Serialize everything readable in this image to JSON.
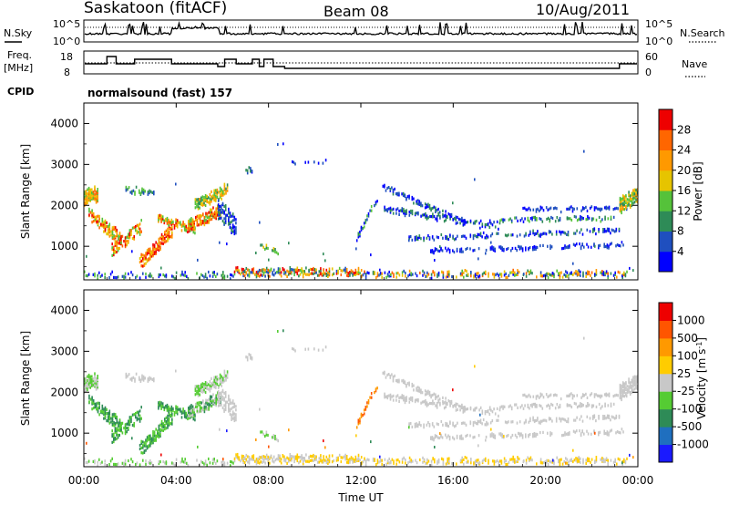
{
  "header": {
    "station": "Saskatoon (fitACF)",
    "beam": "Beam 08",
    "date": "10/Aug/2011"
  },
  "panels": {
    "nsky": {
      "label": "N.Sky",
      "ticks": [
        "10^5",
        "10^0"
      ],
      "right_label": "N.Search",
      "right_ticks": [
        "10^5",
        "10^0"
      ]
    },
    "freq": {
      "label_line1": "Freq.",
      "label_line2": "[MHz]",
      "ticks": [
        "18",
        "8"
      ],
      "right_label": "Nave",
      "right_ticks": [
        "60",
        "0"
      ]
    },
    "cpid": {
      "label": "CPID",
      "value": "normalsound (fast) 157"
    }
  },
  "colors": {
    "power_scale": [
      "#0000ff",
      "#1f4fbf",
      "#2e8b57",
      "#55c23a",
      "#e6c400",
      "#ff9900",
      "#ff6600",
      "#ee0000"
    ],
    "velocity_scale": [
      "#1a1aff",
      "#1f6fbf",
      "#2e8b57",
      "#55cc33",
      "#c8c8c8",
      "#ffcc00",
      "#ff9900",
      "#ff5500",
      "#ee0000"
    ]
  },
  "chart_data": [
    {
      "type": "heatmap",
      "title": "Power",
      "ylabel": "Slant Range [km]",
      "ylim": [
        180,
        4500
      ],
      "yticks": [
        "1000",
        "2000",
        "3000",
        "4000"
      ],
      "colorbar_label": "Power [dB]",
      "colorbar_ticks": [
        "4",
        "8",
        "12",
        "16",
        "20",
        "24",
        "28"
      ],
      "colorbar_range": [
        0,
        32
      ]
    },
    {
      "type": "heatmap",
      "title": "Velocity",
      "ylabel": "Slant Range [km]",
      "ylim": [
        180,
        4500
      ],
      "yticks": [
        "1000",
        "2000",
        "3000",
        "4000"
      ],
      "colorbar_label": "Velocity [m s",
      "colorbar_label_sup": "-1",
      "colorbar_label_end": "]",
      "colorbar_ticks": [
        "1000",
        "500",
        "100",
        "25",
        "-25",
        "-100",
        "-500",
        "-1000"
      ]
    }
  ],
  "time_axis": {
    "label": "Time UT",
    "ticks": [
      "00:00",
      "04:00",
      "08:00",
      "12:00",
      "16:00",
      "20:00",
      "00:00"
    ],
    "range_hours": [
      0,
      24
    ]
  }
}
